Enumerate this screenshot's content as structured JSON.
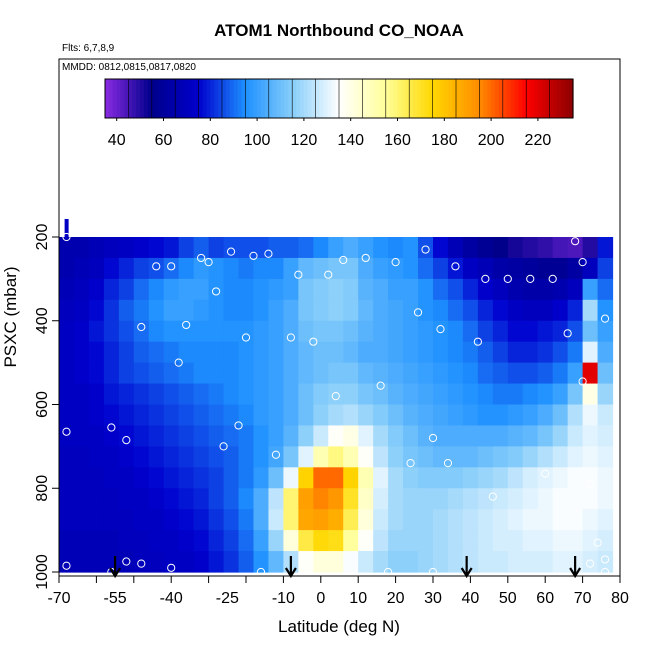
{
  "chart_data": {
    "type": "heatmap",
    "title": "ATOM1 Northbound CO_NOAA",
    "subtitle_lines": [
      "Flts: 6,7,8,9",
      "MMDD: 0812,0815,0817,0820"
    ],
    "xlabel": "Latitude (deg N)",
    "ylabel": "PSXC (mbar)",
    "xlim": [
      -70,
      80
    ],
    "ylim": [
      1000,
      0
    ],
    "x_ticks": [
      -70,
      -60,
      -50,
      -40,
      -30,
      -20,
      -10,
      0,
      10,
      20,
      30,
      40,
      50,
      60,
      70,
      80
    ],
    "x_tick_labels": [
      "-70",
      "-55",
      "-40",
      "-25",
      "-10",
      "0",
      "10",
      "20",
      "30",
      "40",
      "50",
      "60",
      "70",
      "80"
    ],
    "x_tick_label_values": [
      -70,
      -55,
      -40,
      -25,
      -10,
      0,
      10,
      20,
      30,
      40,
      50,
      60,
      70,
      80
    ],
    "y_ticks": [
      200,
      400,
      600,
      800,
      1000
    ],
    "y_tick_labels": [
      "200",
      "400",
      "600",
      "800",
      "1000"
    ],
    "colorbar": {
      "range": [
        35,
        235
      ],
      "ticks": [
        40,
        60,
        80,
        100,
        120,
        140,
        160,
        180,
        200,
        220
      ],
      "tick_labels": [
        "40",
        "60",
        "80",
        "100",
        "120",
        "140",
        "160",
        "180",
        "200",
        "220"
      ],
      "colors": [
        "#8a2be2",
        "#00008b",
        "#0000cd",
        "#1e90ff",
        "#87cefa",
        "#ffffff",
        "#ffff99",
        "#ffd700",
        "#ff8c00",
        "#ff0000",
        "#8b0000"
      ]
    },
    "flight_marker_latitudes": [
      -55,
      -8,
      39,
      68
    ],
    "pressure_levels": [
      175,
      225,
      275,
      325,
      375,
      425,
      475,
      525,
      575,
      625,
      675,
      725,
      775,
      825,
      875,
      925,
      975
    ],
    "latitude_bins": [
      -68,
      -64,
      -60,
      -56,
      -52,
      -48,
      -44,
      -40,
      -36,
      -32,
      -28,
      -24,
      -20,
      -16,
      -12,
      -8,
      -4,
      0,
      4,
      8,
      12,
      16,
      20,
      24,
      28,
      32,
      36,
      40,
      44,
      48,
      52,
      56,
      60,
      64,
      68,
      72,
      76
    ],
    "co_values_ppbv": [
      [
        70,
        68,
        68,
        68,
        68,
        70,
        70,
        70,
        70,
        70,
        72,
        72,
        72,
        72,
        72,
        72,
        72,
        72,
        72,
        72,
        72,
        72,
        72,
        72,
        72,
        72,
        72,
        72,
        72,
        72,
        72,
        72,
        72,
        72,
        72,
        72,
        72
      ],
      [
        66,
        66,
        68,
        70,
        72,
        74,
        76,
        78,
        84,
        88,
        84,
        86,
        86,
        86,
        88,
        88,
        90,
        94,
        100,
        104,
        100,
        96,
        94,
        96,
        86,
        76,
        68,
        62,
        58,
        55,
        52,
        50,
        48,
        45,
        44,
        50,
        78
      ],
      [
        66,
        68,
        70,
        76,
        80,
        84,
        86,
        90,
        94,
        98,
        96,
        94,
        92,
        94,
        94,
        100,
        108,
        110,
        112,
        112,
        104,
        100,
        98,
        96,
        90,
        84,
        78,
        72,
        68,
        64,
        62,
        60,
        58,
        58,
        62,
        70,
        84
      ],
      [
        68,
        70,
        74,
        80,
        84,
        90,
        94,
        98,
        100,
        100,
        96,
        94,
        94,
        96,
        98,
        100,
        112,
        114,
        116,
        114,
        106,
        104,
        100,
        100,
        96,
        90,
        86,
        80,
        74,
        70,
        66,
        64,
        64,
        66,
        70,
        100,
        90
      ],
      [
        70,
        72,
        76,
        82,
        88,
        92,
        96,
        100,
        100,
        98,
        96,
        94,
        94,
        96,
        100,
        104,
        112,
        114,
        116,
        114,
        108,
        104,
        102,
        100,
        96,
        94,
        90,
        86,
        80,
        76,
        72,
        70,
        70,
        74,
        80,
        120,
        96
      ],
      [
        72,
        74,
        78,
        82,
        86,
        90,
        94,
        96,
        96,
        96,
        96,
        96,
        96,
        98,
        100,
        104,
        110,
        112,
        112,
        110,
        106,
        104,
        102,
        100,
        98,
        96,
        94,
        90,
        84,
        80,
        76,
        76,
        78,
        80,
        86,
        110,
        100
      ],
      [
        72,
        74,
        76,
        80,
        84,
        88,
        90,
        92,
        94,
        94,
        94,
        94,
        96,
        98,
        100,
        104,
        108,
        110,
        110,
        108,
        104,
        104,
        102,
        100,
        98,
        96,
        94,
        92,
        88,
        84,
        80,
        80,
        82,
        86,
        92,
        130,
        104
      ],
      [
        72,
        74,
        76,
        80,
        84,
        86,
        88,
        90,
        92,
        94,
        94,
        94,
        96,
        98,
        100,
        104,
        108,
        110,
        112,
        112,
        108,
        106,
        104,
        102,
        100,
        98,
        96,
        94,
        90,
        88,
        86,
        86,
        88,
        92,
        100,
        220,
        110
      ],
      [
        72,
        72,
        74,
        78,
        80,
        82,
        84,
        86,
        88,
        90,
        92,
        94,
        96,
        98,
        100,
        104,
        110,
        114,
        116,
        116,
        112,
        110,
        106,
        104,
        102,
        100,
        98,
        96,
        94,
        92,
        92,
        94,
        96,
        100,
        112,
        140,
        118
      ],
      [
        72,
        72,
        74,
        76,
        78,
        80,
        82,
        84,
        86,
        88,
        90,
        92,
        94,
        98,
        100,
        104,
        110,
        116,
        120,
        122,
        118,
        114,
        110,
        106,
        104,
        102,
        100,
        98,
        96,
        96,
        98,
        100,
        104,
        110,
        122,
        132,
        126
      ],
      [
        72,
        72,
        72,
        74,
        76,
        78,
        80,
        82,
        84,
        86,
        88,
        90,
        92,
        96,
        100,
        106,
        116,
        126,
        136,
        140,
        130,
        120,
        114,
        110,
        106,
        104,
        104,
        104,
        104,
        104,
        106,
        108,
        112,
        118,
        126,
        130,
        128
      ],
      [
        70,
        70,
        72,
        72,
        74,
        76,
        78,
        80,
        82,
        84,
        86,
        88,
        92,
        96,
        102,
        112,
        130,
        150,
        158,
        150,
        136,
        124,
        116,
        112,
        110,
        108,
        108,
        108,
        110,
        112,
        114,
        118,
        122,
        126,
        130,
        132,
        130
      ],
      [
        70,
        70,
        70,
        72,
        72,
        74,
        76,
        78,
        80,
        82,
        84,
        88,
        92,
        98,
        110,
        132,
        176,
        200,
        200,
        176,
        150,
        130,
        120,
        116,
        114,
        114,
        114,
        116,
        118,
        120,
        124,
        128,
        130,
        132,
        134,
        134,
        132
      ],
      [
        70,
        70,
        70,
        70,
        72,
        72,
        74,
        76,
        78,
        80,
        84,
        88,
        94,
        104,
        124,
        160,
        190,
        196,
        192,
        170,
        146,
        128,
        120,
        118,
        118,
        118,
        120,
        122,
        124,
        126,
        128,
        130,
        132,
        134,
        134,
        134,
        132
      ],
      [
        70,
        70,
        70,
        70,
        70,
        72,
        72,
        74,
        76,
        78,
        82,
        86,
        92,
        104,
        126,
        160,
        188,
        190,
        186,
        164,
        142,
        126,
        120,
        118,
        118,
        120,
        122,
        124,
        126,
        128,
        130,
        132,
        132,
        134,
        134,
        132,
        130
      ],
      [
        68,
        68,
        68,
        68,
        70,
        70,
        72,
        72,
        74,
        76,
        80,
        84,
        90,
        100,
        118,
        142,
        166,
        174,
        172,
        154,
        136,
        124,
        118,
        118,
        118,
        120,
        122,
        124,
        126,
        128,
        128,
        130,
        130,
        132,
        132,
        130,
        128
      ],
      [
        68,
        68,
        68,
        68,
        68,
        70,
        70,
        72,
        72,
        74,
        78,
        82,
        88,
        96,
        108,
        122,
        136,
        142,
        142,
        134,
        126,
        120,
        116,
        116,
        118,
        120,
        122,
        124,
        126,
        126,
        128,
        128,
        128,
        130,
        130,
        128,
        126
      ]
    ],
    "observation_points": [
      [
        -68,
        200
      ],
      [
        -68,
        665
      ],
      [
        -56,
        655
      ],
      [
        -68,
        985
      ],
      [
        -56,
        1000
      ],
      [
        -52,
        685
      ],
      [
        -52,
        975
      ],
      [
        -48,
        980
      ],
      [
        -48,
        415
      ],
      [
        -44,
        270
      ],
      [
        -40,
        270
      ],
      [
        -38,
        500
      ],
      [
        -36,
        410
      ],
      [
        -32,
        250
      ],
      [
        -30,
        260
      ],
      [
        -28,
        330
      ],
      [
        -26,
        700
      ],
      [
        -24,
        235
      ],
      [
        -22,
        650
      ],
      [
        -20,
        440
      ],
      [
        -18,
        245
      ],
      [
        -14,
        240
      ],
      [
        -12,
        720
      ],
      [
        -8,
        440
      ],
      [
        -6,
        290
      ],
      [
        -2,
        450
      ],
      [
        2,
        290
      ],
      [
        4,
        580
      ],
      [
        6,
        255
      ],
      [
        12,
        250
      ],
      [
        16,
        555
      ],
      [
        18,
        1000
      ],
      [
        20,
        260
      ],
      [
        24,
        740
      ],
      [
        26,
        380
      ],
      [
        28,
        230
      ],
      [
        30,
        680
      ],
      [
        32,
        420
      ],
      [
        34,
        740
      ],
      [
        36,
        270
      ],
      [
        42,
        450
      ],
      [
        44,
        300
      ],
      [
        46,
        820
      ],
      [
        50,
        300
      ],
      [
        56,
        300
      ],
      [
        60,
        765
      ],
      [
        62,
        300
      ],
      [
        66,
        430
      ],
      [
        68,
        210
      ],
      [
        70,
        260
      ],
      [
        70,
        545
      ],
      [
        72,
        980
      ],
      [
        72,
        790
      ],
      [
        74,
        930
      ],
      [
        76,
        395
      ],
      [
        76,
        970
      ],
      [
        76,
        1000
      ],
      [
        -40,
        990
      ],
      [
        -16,
        1000
      ],
      [
        30,
        1000
      ]
    ]
  }
}
